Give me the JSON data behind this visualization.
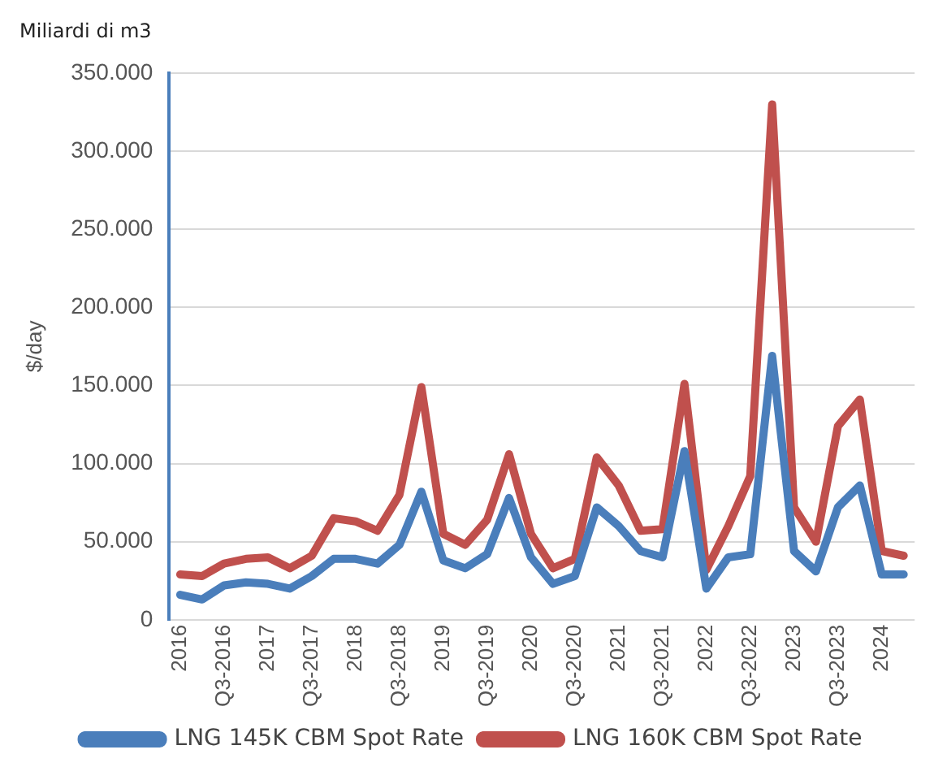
{
  "chart_data": {
    "type": "line",
    "title": "Miliardi di m3",
    "ylabel": "$/day",
    "categories": [
      "2016",
      null,
      "Q3-2016",
      null,
      "2017",
      null,
      "Q3-2017",
      null,
      "2018",
      null,
      "Q3-2018",
      null,
      "2019",
      null,
      "Q3-2019",
      null,
      "2020",
      null,
      "Q3-2020",
      null,
      "2021",
      null,
      "Q3-2021",
      null,
      "2022",
      null,
      "Q3-2022",
      null,
      "2023",
      null,
      "Q3-2023",
      null,
      "2024",
      null
    ],
    "series": [
      {
        "name": "LNG 145K CBM Spot Rate",
        "color": "#4a7ebb",
        "values": [
          16000,
          13000,
          22000,
          24000,
          23000,
          20000,
          28000,
          39000,
          39000,
          36000,
          48000,
          82000,
          38000,
          33000,
          42000,
          78000,
          40000,
          23000,
          28000,
          72000,
          60000,
          44000,
          40000,
          108000,
          20000,
          40000,
          42000,
          169000,
          44000,
          31000,
          72000,
          86000,
          29000,
          29000
        ]
      },
      {
        "name": "LNG 160K CBM Spot Rate",
        "color": "#c0504d",
        "values": [
          29000,
          28000,
          36000,
          39000,
          40000,
          33000,
          41000,
          65000,
          63000,
          57000,
          80000,
          149000,
          55000,
          48000,
          64000,
          106000,
          55000,
          33000,
          39000,
          104000,
          86000,
          57000,
          58000,
          151000,
          32000,
          60000,
          92000,
          330000,
          72000,
          50000,
          124000,
          141000,
          44000,
          41000
        ]
      }
    ],
    "ylim": [
      0,
      350000
    ],
    "yticks": [
      {
        "value": 0,
        "label": "0"
      },
      {
        "value": 50000,
        "label": "50.000"
      },
      {
        "value": 100000,
        "label": "100.000"
      },
      {
        "value": 150000,
        "label": "150.000"
      },
      {
        "value": 200000,
        "label": "200.000"
      },
      {
        "value": 250000,
        "label": "250.000"
      },
      {
        "value": 300000,
        "label": "300.000"
      },
      {
        "value": 350000,
        "label": "350.000"
      }
    ],
    "grid": "y",
    "legend": "bottom",
    "marker": "none",
    "line_style": "solid"
  }
}
